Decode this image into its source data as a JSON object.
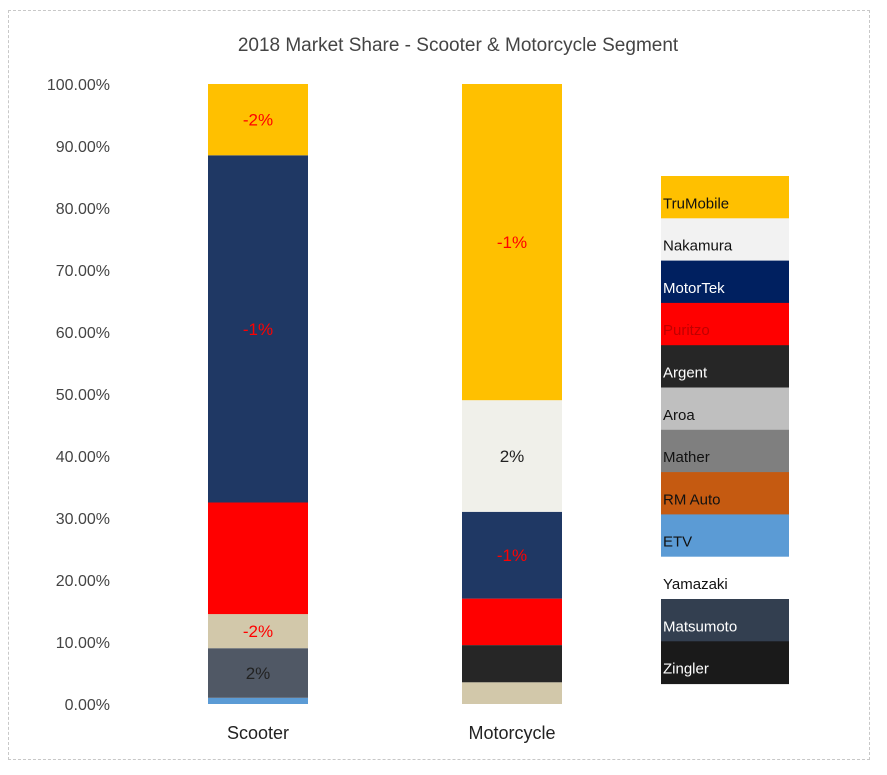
{
  "chart_data": {
    "type": "bar",
    "stacked": true,
    "title": "2018 Market Share - Scooter & Motorcycle Segment",
    "xlabel": "",
    "ylabel": "",
    "ylim": [
      0,
      100
    ],
    "ytick_labels": [
      "0.00%",
      "10.00%",
      "20.00%",
      "30.00%",
      "40.00%",
      "50.00%",
      "60.00%",
      "70.00%",
      "80.00%",
      "90.00%",
      "100.00%"
    ],
    "categories": [
      "Scooter",
      "Motorcycle"
    ],
    "legend_position": "right",
    "series": [
      {
        "name": "ETV",
        "color": "#5b9bd5",
        "values": [
          1.0,
          0.0
        ]
      },
      {
        "name": "Matsumoto",
        "color": "#505865",
        "values": [
          8.0,
          0.0
        ]
      },
      {
        "name": "Yamazaki",
        "color": "#d2c8aa",
        "values": [
          5.5,
          3.5
        ]
      },
      {
        "name": "Zingler",
        "color": "#262626",
        "values": [
          0.0,
          6.0
        ]
      },
      {
        "name": "Puritzo",
        "color": "#ff0000",
        "values": [
          18.0,
          7.5
        ]
      },
      {
        "name": "MotorTek",
        "color": "#1f3864",
        "values": [
          56.0,
          14.0
        ]
      },
      {
        "name": "Nakamura",
        "color": "#f0f0ea",
        "values": [
          0.0,
          18.0
        ]
      },
      {
        "name": "TruMobile",
        "color": "#ffc000",
        "values": [
          11.5,
          51.0
        ]
      }
    ],
    "data_labels": [
      {
        "category": "Scooter",
        "series": "TruMobile",
        "text": "-2%",
        "color": "#ff0000"
      },
      {
        "category": "Scooter",
        "series": "MotorTek",
        "text": "-1%",
        "color": "#ff0000"
      },
      {
        "category": "Scooter",
        "series": "Yamazaki",
        "text": "-2%",
        "color": "#ff0000"
      },
      {
        "category": "Scooter",
        "series": "Matsumoto",
        "text": "2%",
        "color": "#222222"
      },
      {
        "category": "Motorcycle",
        "series": "TruMobile",
        "text": "-1%",
        "color": "#ff0000"
      },
      {
        "category": "Motorcycle",
        "series": "Nakamura",
        "text": "2%",
        "color": "#222222"
      },
      {
        "category": "Motorcycle",
        "series": "MotorTek",
        "text": "-1%",
        "color": "#ff0000"
      }
    ]
  },
  "legend": [
    {
      "name": "TruMobile",
      "color": "#ffc000",
      "text_color": "#111111"
    },
    {
      "name": "Nakamura",
      "color": "#f2f2f2",
      "text_color": "#111111"
    },
    {
      "name": "MotorTek",
      "color": "#002060",
      "text_color": "#ffffff"
    },
    {
      "name": "Puritzo",
      "color": "#ff0000",
      "text_color": "#c00000"
    },
    {
      "name": "Argent",
      "color": "#262626",
      "text_color": "#ffffff"
    },
    {
      "name": "Aroa",
      "color": "#bfbfbf",
      "text_color": "#111111"
    },
    {
      "name": "Mather",
      "color": "#7f7f7f",
      "text_color": "#111111"
    },
    {
      "name": "RM Auto",
      "color": "#c55a11",
      "text_color": "#111111"
    },
    {
      "name": "ETV",
      "color": "#5b9bd5",
      "text_color": "#111111"
    },
    {
      "name": "Yamazaki",
      "color": "#ffffff",
      "text_color": "#111111"
    },
    {
      "name": "Matsumoto",
      "color": "#333f50",
      "text_color": "#ffffff"
    },
    {
      "name": "Zingler",
      "color": "#1a1a1a",
      "text_color": "#ffffff"
    }
  ]
}
